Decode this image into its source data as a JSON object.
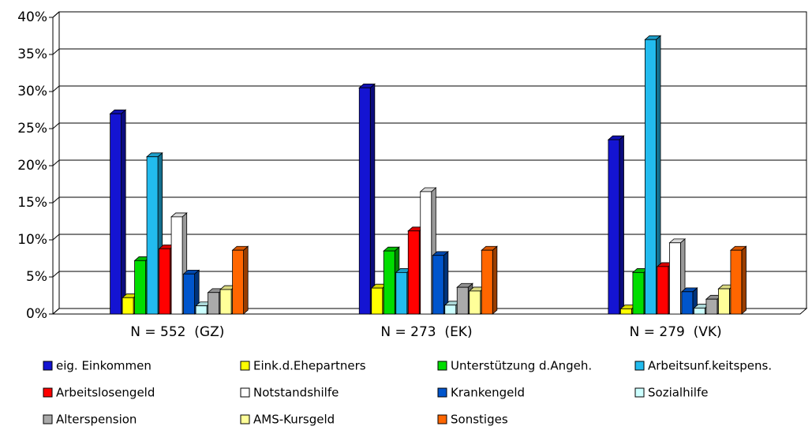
{
  "chart_data": {
    "type": "bar3d",
    "categories": [
      "N = 552  (GZ)",
      "N = 273  (EK)",
      "N = 279  (VK)"
    ],
    "series": [
      {
        "name": "eig. Einkommen",
        "color": "#1414d2",
        "values": [
          27,
          30.5,
          23.5
        ]
      },
      {
        "name": "Eink.d.Ehepartners",
        "color": "#ffff00",
        "values": [
          2.2,
          3.5,
          0.7
        ]
      },
      {
        "name": "Unterstützung d.Angeh.",
        "color": "#00dd00",
        "values": [
          7.2,
          8.5,
          5.6
        ]
      },
      {
        "name": "Arbeitsunf.keitspens.",
        "color": "#22bbee",
        "values": [
          21.2,
          5.6,
          37
        ]
      },
      {
        "name": "Arbeitslosengeld",
        "color": "#ff0000",
        "values": [
          8.8,
          11.2,
          6.4
        ]
      },
      {
        "name": "Notstandshilfe",
        "color": "#ffffff",
        "values": [
          13.1,
          16.5,
          9.6
        ]
      },
      {
        "name": "Krankengeld",
        "color": "#0055cc",
        "values": [
          5.4,
          7.9,
          3
        ]
      },
      {
        "name": "Sozialhilfe",
        "color": "#ccffff",
        "values": [
          1.1,
          1.2,
          0.8
        ]
      },
      {
        "name": "Alterspension",
        "color": "#aaaaaa",
        "values": [
          2.9,
          3.6,
          2
        ]
      },
      {
        "name": "AMS-Kursgeld",
        "color": "#ffff99",
        "values": [
          3.3,
          3.1,
          3.4
        ]
      },
      {
        "name": "Sonstiges",
        "color": "#ff6600",
        "values": [
          8.6,
          8.6,
          8.6
        ]
      }
    ],
    "ylim": [
      0,
      40
    ],
    "yticks": [
      {
        "value": 0,
        "label": "0%"
      },
      {
        "value": 5,
        "label": "5%"
      },
      {
        "value": 10,
        "label": "10%"
      },
      {
        "value": 15,
        "label": "15%"
      },
      {
        "value": 20,
        "label": "20%"
      },
      {
        "value": 25,
        "label": "25%"
      },
      {
        "value": 30,
        "label": "30%"
      },
      {
        "value": 35,
        "label": "35%"
      },
      {
        "value": 40,
        "label": "40%"
      }
    ],
    "grid": true
  }
}
